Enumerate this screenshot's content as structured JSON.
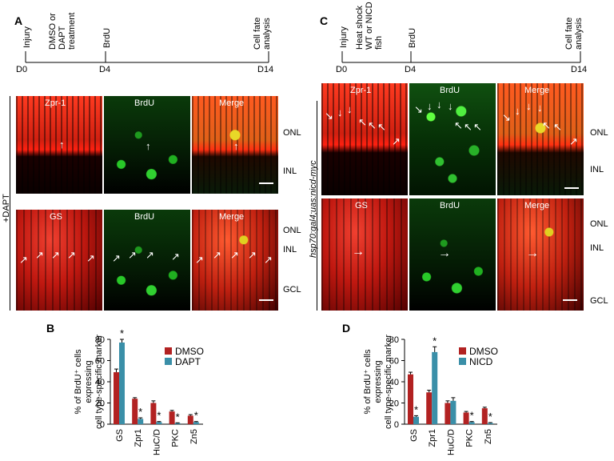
{
  "panels": {
    "A": {
      "letter": "A",
      "timeline": {
        "events": [
          "Injury",
          "DMSO or DAPT treatment",
          "BrdU",
          "Cell fate analysis"
        ],
        "days": [
          "D0",
          "D4",
          "D14"
        ]
      },
      "condition": "+DAPT",
      "rows": [
        {
          "channels": [
            "Zpr-1",
            "BrdU",
            "Merge"
          ],
          "layers": [
            "ONL",
            "INL"
          ]
        },
        {
          "channels": [
            "GS",
            "BrdU",
            "Merge"
          ],
          "layers": [
            "ONL",
            "INL",
            "GCL"
          ]
        }
      ]
    },
    "B": {
      "letter": "B",
      "ylabel_line1": "% of BrdU⁺ cells expressing",
      "ylabel_line2": "cell type-specific marker",
      "star": "*"
    },
    "C": {
      "letter": "C",
      "timeline": {
        "events": [
          "Injury",
          "Heat shock WT or NICD fish",
          "BrdU",
          "Cell fate analysis"
        ],
        "days": [
          "D0",
          "D4",
          "D14"
        ]
      },
      "condition": "hsp70:gal4;uas:nicd-myc",
      "rows": [
        {
          "channels": [
            "Zpr-1",
            "BrdU",
            "Merge"
          ],
          "layers": [
            "ONL",
            "INL"
          ]
        },
        {
          "channels": [
            "GS",
            "BrdU",
            "Merge"
          ],
          "layers": [
            "ONL",
            "INL",
            "GCL"
          ]
        }
      ]
    },
    "D": {
      "letter": "D",
      "ylabel_line1": "% of BrdU⁺ cells expressing",
      "ylabel_line2": "cell type-specific marker",
      "star": "*"
    }
  },
  "colors": {
    "series_red": "#b22222",
    "series_teal": "#3a8fa8"
  },
  "chart_data": [
    {
      "type": "bar",
      "panel": "B",
      "categories": [
        "GS",
        "Zpr1",
        "HuC/D",
        "PKC",
        "Zn5"
      ],
      "series": [
        {
          "name": "DMSO",
          "values": [
            49,
            24,
            20,
            12,
            8
          ],
          "errors": [
            3,
            1,
            2,
            1,
            1
          ]
        },
        {
          "name": "DAPT",
          "values": [
            77,
            5,
            2,
            1,
            2
          ],
          "errors": [
            3,
            1,
            0.5,
            0.3,
            0.5
          ],
          "significant": [
            true,
            true,
            true,
            true,
            true
          ]
        }
      ],
      "ylabel": "% of BrdU⁺ cells expressing cell type-specific marker",
      "ylim": [
        0,
        80
      ],
      "yticks": [
        0,
        20,
        40,
        60,
        80
      ],
      "legend": "top-right"
    },
    {
      "type": "bar",
      "panel": "D",
      "categories": [
        "GS",
        "Zpr1",
        "HuC/D",
        "PKC",
        "Zn5"
      ],
      "series": [
        {
          "name": "DMSO",
          "values": [
            47,
            30,
            20,
            11,
            15
          ],
          "errors": [
            2,
            2,
            2,
            1,
            1
          ]
        },
        {
          "name": "NICD",
          "values": [
            7,
            68,
            22,
            2,
            1
          ],
          "errors": [
            1,
            5,
            3,
            0.5,
            0.5
          ],
          "significant": [
            true,
            true,
            false,
            true,
            true
          ]
        }
      ],
      "ylabel": "% of BrdU⁺ cells expressing cell type-specific marker",
      "ylim": [
        0,
        80
      ],
      "yticks": [
        0,
        20,
        40,
        60,
        80
      ],
      "legend": "top-right"
    }
  ]
}
